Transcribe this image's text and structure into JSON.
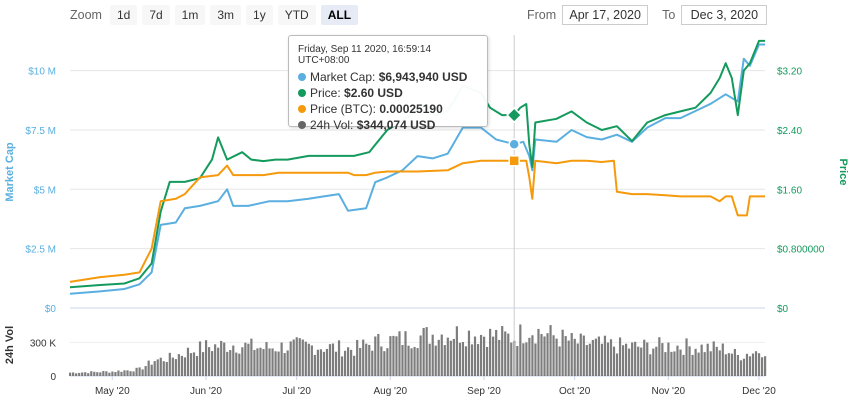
{
  "toolbar": {
    "zoom_label": "Zoom",
    "zoom_buttons": [
      "1d",
      "7d",
      "1m",
      "3m",
      "1y",
      "YTD",
      "ALL"
    ],
    "active_zoom": "ALL",
    "from_label": "From",
    "from_value": "Apr 17, 2020",
    "to_label": "To",
    "to_value": "Dec 3, 2020"
  },
  "tooltip": {
    "header": "Friday, Sep 11 2020, 16:59:14 UTC+08:00",
    "rows": [
      {
        "label": "Market Cap:",
        "value": "$6,943,940 USD",
        "color": "#5aafe0"
      },
      {
        "label": "Price:",
        "value": "$2.60 USD",
        "color": "#139a5c"
      },
      {
        "label": "Price (BTC):",
        "value": "0.00025190",
        "color": "#f59a0c"
      },
      {
        "label": "24h Vol:",
        "value": "$344,074 USD",
        "color": "#666666"
      }
    ]
  },
  "chart_data": {
    "type": "line",
    "x_labels": [
      "May '20",
      "Jun '20",
      "Jul '20",
      "Aug '20",
      "Sep '20",
      "Oct '20",
      "Nov '20",
      "Dec '20"
    ],
    "x_range": [
      "2020-04-17",
      "2020-12-03"
    ],
    "left_axis": {
      "title": "Market Cap",
      "ticks": [
        "$0",
        "$2.5 M",
        "$5 M",
        "$7.5 M",
        "$10 M"
      ],
      "range": [
        0,
        11500000
      ],
      "color": "#5aafe0"
    },
    "right_axis": {
      "title": "Price",
      "ticks": [
        "$0",
        "$0.800000",
        "$1.60",
        "$2.40",
        "$3.20"
      ],
      "range": [
        0,
        3.68
      ],
      "color": "#139a5c"
    },
    "volume_axis": {
      "title": "24h Vol",
      "ticks": [
        "0",
        "300 K"
      ],
      "range": [
        0,
        500000
      ]
    },
    "crosshair_date": "2020-09-11",
    "series": [
      {
        "name": "Market Cap",
        "color": "#5aafe0",
        "axis": "left",
        "points": [
          [
            "2020-04-17",
            600000
          ],
          [
            "2020-04-27",
            700000
          ],
          [
            "2020-05-05",
            800000
          ],
          [
            "2020-05-10",
            1000000
          ],
          [
            "2020-05-14",
            1500000
          ],
          [
            "2020-05-17",
            3500000
          ],
          [
            "2020-05-22",
            3600000
          ],
          [
            "2020-05-25",
            4200000
          ],
          [
            "2020-05-30",
            4300000
          ],
          [
            "2020-06-05",
            4500000
          ],
          [
            "2020-06-08",
            5000000
          ],
          [
            "2020-06-10",
            4300000
          ],
          [
            "2020-06-15",
            4300000
          ],
          [
            "2020-06-22",
            4500000
          ],
          [
            "2020-06-28",
            4500000
          ],
          [
            "2020-07-05",
            4600000
          ],
          [
            "2020-07-10",
            4700000
          ],
          [
            "2020-07-15",
            4800000
          ],
          [
            "2020-07-18",
            4100000
          ],
          [
            "2020-07-24",
            4200000
          ],
          [
            "2020-07-27",
            5300000
          ],
          [
            "2020-07-31",
            5500000
          ],
          [
            "2020-08-05",
            5800000
          ],
          [
            "2020-08-10",
            6400000
          ],
          [
            "2020-08-15",
            6300000
          ],
          [
            "2020-08-20",
            6500000
          ],
          [
            "2020-08-25",
            7600000
          ],
          [
            "2020-08-31",
            7600000
          ],
          [
            "2020-09-05",
            7100000
          ],
          [
            "2020-09-08",
            7000000
          ],
          [
            "2020-09-11",
            6900000
          ],
          [
            "2020-09-14",
            7000000
          ],
          [
            "2020-09-16",
            6400000
          ],
          [
            "2020-09-17",
            5800000
          ],
          [
            "2020-09-18",
            7100000
          ],
          [
            "2020-09-25",
            7000000
          ],
          [
            "2020-09-30",
            7500000
          ],
          [
            "2020-10-05",
            7200000
          ],
          [
            "2020-10-10",
            7100000
          ],
          [
            "2020-10-15",
            7300000
          ],
          [
            "2020-10-20",
            7000000
          ],
          [
            "2020-10-25",
            7600000
          ],
          [
            "2020-10-31",
            8000000
          ],
          [
            "2020-11-05",
            8000000
          ],
          [
            "2020-11-10",
            8300000
          ],
          [
            "2020-11-15",
            8600000
          ],
          [
            "2020-11-20",
            9000000
          ],
          [
            "2020-11-24",
            8700000
          ],
          [
            "2020-11-26",
            10500000
          ],
          [
            "2020-11-28",
            10200000
          ],
          [
            "2020-12-01",
            11100000
          ],
          [
            "2020-12-03",
            11100000
          ]
        ]
      },
      {
        "name": "Price",
        "color": "#139a5c",
        "axis": "right",
        "points": [
          [
            "2020-04-17",
            0.28
          ],
          [
            "2020-04-27",
            0.31
          ],
          [
            "2020-05-05",
            0.33
          ],
          [
            "2020-05-10",
            0.4
          ],
          [
            "2020-05-14",
            0.6
          ],
          [
            "2020-05-17",
            1.3
          ],
          [
            "2020-05-20",
            1.7
          ],
          [
            "2020-05-25",
            1.7
          ],
          [
            "2020-05-30",
            1.75
          ],
          [
            "2020-06-03",
            2.0
          ],
          [
            "2020-06-05",
            2.3
          ],
          [
            "2020-06-08",
            2.0
          ],
          [
            "2020-06-13",
            2.1
          ],
          [
            "2020-06-16",
            2.0
          ],
          [
            "2020-06-20",
            1.98
          ],
          [
            "2020-06-24",
            2.0
          ],
          [
            "2020-06-28",
            2.0
          ],
          [
            "2020-07-05",
            2.05
          ],
          [
            "2020-07-15",
            2.05
          ],
          [
            "2020-07-20",
            2.05
          ],
          [
            "2020-07-25",
            2.1
          ],
          [
            "2020-07-27",
            2.2
          ],
          [
            "2020-07-31",
            2.4
          ],
          [
            "2020-08-04",
            2.5
          ],
          [
            "2020-08-08",
            2.6
          ],
          [
            "2020-08-12",
            2.75
          ],
          [
            "2020-08-16",
            2.6
          ],
          [
            "2020-08-20",
            2.65
          ],
          [
            "2020-08-25",
            3.0
          ],
          [
            "2020-08-31",
            2.9
          ],
          [
            "2020-09-03",
            2.7
          ],
          [
            "2020-09-07",
            2.6
          ],
          [
            "2020-09-11",
            2.6
          ],
          [
            "2020-09-13",
            2.7
          ],
          [
            "2020-09-15",
            2.75
          ],
          [
            "2020-09-16",
            2.2
          ],
          [
            "2020-09-17",
            1.9
          ],
          [
            "2020-09-18",
            2.5
          ],
          [
            "2020-09-25",
            2.55
          ],
          [
            "2020-09-30",
            2.65
          ],
          [
            "2020-10-05",
            2.5
          ],
          [
            "2020-10-10",
            2.4
          ],
          [
            "2020-10-15",
            2.45
          ],
          [
            "2020-10-20",
            2.25
          ],
          [
            "2020-10-25",
            2.5
          ],
          [
            "2020-10-31",
            2.6
          ],
          [
            "2020-11-05",
            2.65
          ],
          [
            "2020-11-10",
            2.7
          ],
          [
            "2020-11-15",
            2.9
          ],
          [
            "2020-11-18",
            3.1
          ],
          [
            "2020-11-20",
            3.3
          ],
          [
            "2020-11-22",
            3.1
          ],
          [
            "2020-11-24",
            2.6
          ],
          [
            "2020-11-26",
            3.2
          ],
          [
            "2020-11-28",
            3.3
          ],
          [
            "2020-12-01",
            3.6
          ],
          [
            "2020-12-03",
            3.6
          ]
        ]
      },
      {
        "name": "Price (BTC)",
        "color": "#f59a0c",
        "axis": "left_scaled",
        "points": [
          [
            "2020-04-17",
            1100000
          ],
          [
            "2020-04-27",
            1300000
          ],
          [
            "2020-05-05",
            1400000
          ],
          [
            "2020-05-10",
            1500000
          ],
          [
            "2020-05-14",
            2500000
          ],
          [
            "2020-05-17",
            4500000
          ],
          [
            "2020-05-22",
            4600000
          ],
          [
            "2020-05-25",
            4800000
          ],
          [
            "2020-05-30",
            5500000
          ],
          [
            "2020-06-05",
            5600000
          ],
          [
            "2020-06-08",
            6000000
          ],
          [
            "2020-06-10",
            5600000
          ],
          [
            "2020-06-20",
            5600000
          ],
          [
            "2020-06-25",
            5700000
          ],
          [
            "2020-07-05",
            5700000
          ],
          [
            "2020-07-18",
            5700000
          ],
          [
            "2020-07-20",
            5600000
          ],
          [
            "2020-07-24",
            5600000
          ],
          [
            "2020-07-27",
            5700000
          ],
          [
            "2020-07-31",
            5750000
          ],
          [
            "2020-08-10",
            5750000
          ],
          [
            "2020-08-20",
            5800000
          ],
          [
            "2020-08-25",
            6100000
          ],
          [
            "2020-08-31",
            6200000
          ],
          [
            "2020-09-05",
            6200000
          ],
          [
            "2020-09-11",
            6200000
          ],
          [
            "2020-09-15",
            6200000
          ],
          [
            "2020-09-16",
            5500000
          ],
          [
            "2020-09-17",
            4600000
          ],
          [
            "2020-09-18",
            6200000
          ],
          [
            "2020-09-25",
            6100000
          ],
          [
            "2020-09-30",
            6200000
          ],
          [
            "2020-10-05",
            6200000
          ],
          [
            "2020-10-10",
            6150000
          ],
          [
            "2020-10-14",
            6200000
          ],
          [
            "2020-10-15",
            4900000
          ],
          [
            "2020-10-20",
            4800000
          ],
          [
            "2020-10-25",
            4800000
          ],
          [
            "2020-10-31",
            4750000
          ],
          [
            "2020-11-05",
            4700000
          ],
          [
            "2020-11-10",
            4700000
          ],
          [
            "2020-11-15",
            4700000
          ],
          [
            "2020-11-18",
            4500000
          ],
          [
            "2020-11-20",
            4700000
          ],
          [
            "2020-11-22",
            4700000
          ],
          [
            "2020-11-24",
            3900000
          ],
          [
            "2020-11-27",
            3900000
          ],
          [
            "2020-11-28",
            4700000
          ],
          [
            "2020-12-01",
            4700000
          ],
          [
            "2020-12-03",
            4700000
          ]
        ]
      },
      {
        "name": "24h Vol",
        "color": "#666666",
        "axis": "volume",
        "points": [
          [
            "2020-04-17",
            30000
          ],
          [
            "2020-05-01",
            40000
          ],
          [
            "2020-05-10",
            60000
          ],
          [
            "2020-05-15",
            140000
          ],
          [
            "2020-05-20",
            160000
          ],
          [
            "2020-05-25",
            210000
          ],
          [
            "2020-06-01",
            260000
          ],
          [
            "2020-06-10",
            280000
          ],
          [
            "2020-06-20",
            250000
          ],
          [
            "2020-07-01",
            270000
          ],
          [
            "2020-07-10",
            260000
          ],
          [
            "2020-07-20",
            240000
          ],
          [
            "2020-07-27",
            300000
          ],
          [
            "2020-08-05",
            330000
          ],
          [
            "2020-08-15",
            370000
          ],
          [
            "2020-08-25",
            380000
          ],
          [
            "2020-09-01",
            370000
          ],
          [
            "2020-09-11",
            344074
          ],
          [
            "2020-09-16",
            420000
          ],
          [
            "2020-09-25",
            350000
          ],
          [
            "2020-10-01",
            300000
          ],
          [
            "2020-10-10",
            280000
          ],
          [
            "2020-10-20",
            260000
          ],
          [
            "2020-11-01",
            270000
          ],
          [
            "2020-11-10",
            260000
          ],
          [
            "2020-11-20",
            240000
          ],
          [
            "2020-11-24",
            180000
          ],
          [
            "2020-12-03",
            240000
          ]
        ]
      }
    ]
  }
}
